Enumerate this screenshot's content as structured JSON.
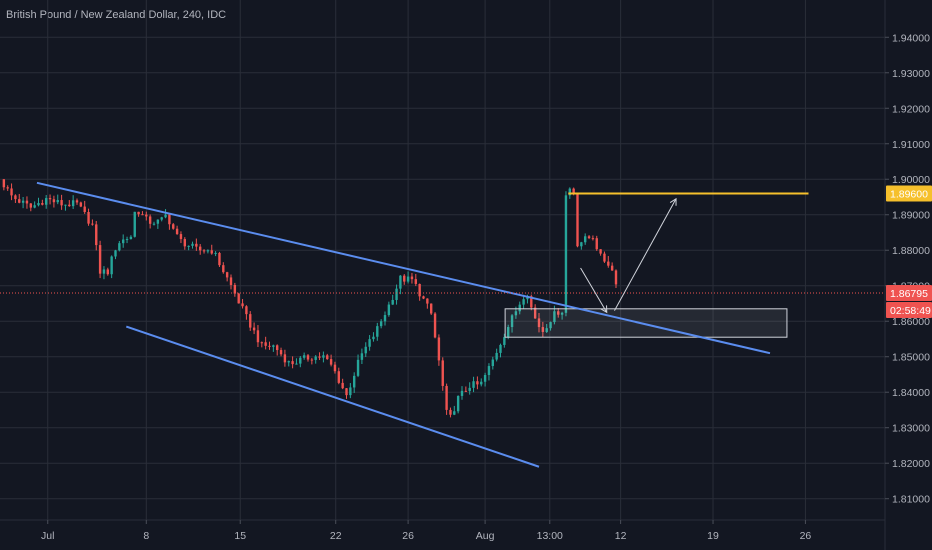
{
  "chart_data": {
    "type": "candlestick",
    "title": "British Pound / New Zealand Dollar, 240, IDC",
    "ylim": [
      1.804,
      1.9505
    ],
    "yticks": [
      "1.94000",
      "1.93000",
      "1.92000",
      "1.91000",
      "1.90000",
      "1.89000",
      "1.88000",
      "1.87000",
      "1.86000",
      "1.85000",
      "1.84000",
      "1.83000",
      "1.82000",
      "1.81000"
    ],
    "xticks": [
      "Jul",
      "8",
      "15",
      "22",
      "26",
      "Aug",
      "13:00",
      "12",
      "19",
      "26"
    ],
    "close_series": [
      {
        "x": 0.0,
        "y": 1.9
      },
      {
        "x": 0.8,
        "y": 1.895
      },
      {
        "x": 2.0,
        "y": 1.892
      },
      {
        "x": 3.0,
        "y": 1.8945
      },
      {
        "x": 4.0,
        "y": 1.893
      },
      {
        "x": 5.0,
        "y": 1.893
      },
      {
        "x": 6.0,
        "y": 1.887
      },
      {
        "x": 6.5,
        "y": 1.874
      },
      {
        "x": 7.0,
        "y": 1.874
      },
      {
        "x": 7.6,
        "y": 1.882
      },
      {
        "x": 8.5,
        "y": 1.884
      },
      {
        "x": 8.8,
        "y": 1.892
      },
      {
        "x": 9.6,
        "y": 1.888
      },
      {
        "x": 10.4,
        "y": 1.888
      },
      {
        "x": 10.8,
        "y": 1.89
      },
      {
        "x": 11.6,
        "y": 1.883
      },
      {
        "x": 12.8,
        "y": 1.88
      },
      {
        "x": 13.8,
        "y": 1.88
      },
      {
        "x": 15.0,
        "y": 1.87
      },
      {
        "x": 16.0,
        "y": 1.861
      },
      {
        "x": 17.0,
        "y": 1.853
      },
      {
        "x": 17.8,
        "y": 1.853
      },
      {
        "x": 18.8,
        "y": 1.848
      },
      {
        "x": 20.2,
        "y": 1.85
      },
      {
        "x": 21.0,
        "y": 1.85
      },
      {
        "x": 21.6,
        "y": 1.847
      },
      {
        "x": 22.5,
        "y": 1.839
      },
      {
        "x": 23.4,
        "y": 1.85
      },
      {
        "x": 24.4,
        "y": 1.857
      },
      {
        "x": 25.2,
        "y": 1.864
      },
      {
        "x": 26.0,
        "y": 1.872
      },
      {
        "x": 26.8,
        "y": 1.8715
      },
      {
        "x": 27.5,
        "y": 1.866
      },
      {
        "x": 28.0,
        "y": 1.862
      },
      {
        "x": 28.6,
        "y": 1.846
      },
      {
        "x": 29.1,
        "y": 1.831
      },
      {
        "x": 29.7,
        "y": 1.838
      },
      {
        "x": 30.5,
        "y": 1.842
      },
      {
        "x": 31.2,
        "y": 1.842
      },
      {
        "x": 32.0,
        "y": 1.849
      },
      {
        "x": 32.7,
        "y": 1.856
      },
      {
        "x": 33.5,
        "y": 1.863
      },
      {
        "x": 34.2,
        "y": 1.869
      },
      {
        "x": 34.6,
        "y": 1.862
      },
      {
        "x": 35.2,
        "y": 1.857
      },
      {
        "x": 35.8,
        "y": 1.861
      },
      {
        "x": 36.3,
        "y": 1.863
      },
      {
        "x": 36.5,
        "y": 1.863
      },
      {
        "x": 36.7,
        "y": 1.895
      },
      {
        "x": 37.2,
        "y": 1.899
      },
      {
        "x": 37.5,
        "y": 1.882
      },
      {
        "x": 38.5,
        "y": 1.884
      },
      {
        "x": 39.0,
        "y": 1.878
      },
      {
        "x": 39.6,
        "y": 1.876
      },
      {
        "x": 40.2,
        "y": 1.869
      }
    ],
    "annotations": {
      "upper_channel_line": [
        {
          "x": 2.4,
          "y": 1.899
        },
        {
          "x": 50.0,
          "y": 1.851
        }
      ],
      "lower_channel_line": [
        {
          "x": 8.2,
          "y": 1.8585
        },
        {
          "x": 35.0,
          "y": 1.819
        }
      ],
      "resistance_line": {
        "y": 1.896,
        "x_start": 36.9,
        "x_end": 52.5
      },
      "support_zone": {
        "x_start": 32.8,
        "x_end": 51.1,
        "y_low": 1.8555,
        "y_high": 1.8635
      },
      "arrow_down": [
        {
          "x": 37.7,
          "y": 1.875
        },
        {
          "x": 39.4,
          "y": 1.8625
        }
      ],
      "arrow_up": [
        {
          "x": 39.9,
          "y": 1.863
        },
        {
          "x": 43.9,
          "y": 1.8945
        }
      ]
    },
    "price_labels": {
      "resistance": {
        "text": "1.89600",
        "y": 1.896,
        "color": "#f6c02c"
      },
      "last_price": {
        "text": "1.86795",
        "y": 1.86795,
        "color": "#ef5350"
      },
      "countdown": {
        "text": "02:58:49",
        "color": "#ef5350"
      }
    },
    "colors": {
      "background": "#131722",
      "grid": "#2a2e39",
      "axis_text": "#b2b5be",
      "up_candle": "#26a69a",
      "down_candle": "#ef5350",
      "channel_line": "#5b8def",
      "resistance": "#f6c02c",
      "zone_fill": "#ffffff",
      "arrow": "#d1d4dc"
    },
    "grid": true,
    "legend": "none"
  }
}
